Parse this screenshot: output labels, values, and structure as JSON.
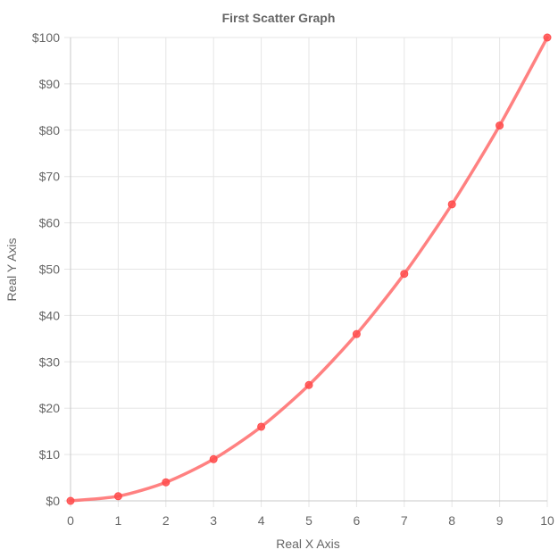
{
  "chart_data": {
    "type": "scatter",
    "title": "First Scatter Graph",
    "xlabel": "Real X Axis",
    "ylabel": "Real Y Axis",
    "xlim": [
      0,
      10
    ],
    "ylim": [
      0,
      100
    ],
    "x_ticks": [
      0,
      1,
      2,
      3,
      4,
      5,
      6,
      7,
      8,
      9,
      10
    ],
    "y_ticks": [
      0,
      10,
      20,
      30,
      40,
      50,
      60,
      70,
      80,
      90,
      100
    ],
    "y_tick_labels": [
      "$0",
      "$10",
      "$20",
      "$30",
      "$40",
      "$50",
      "$60",
      "$70",
      "$80",
      "$90",
      "$100"
    ],
    "grid": true,
    "legend": "none",
    "show_line": true,
    "series": [
      {
        "color": "#ff6b6b",
        "point_color": "#ff4d4d",
        "x": [
          0,
          1,
          2,
          3,
          4,
          5,
          6,
          7,
          8,
          9,
          10
        ],
        "y": [
          0,
          1,
          4,
          9,
          16,
          25,
          36,
          49,
          64,
          81,
          100
        ]
      }
    ]
  }
}
